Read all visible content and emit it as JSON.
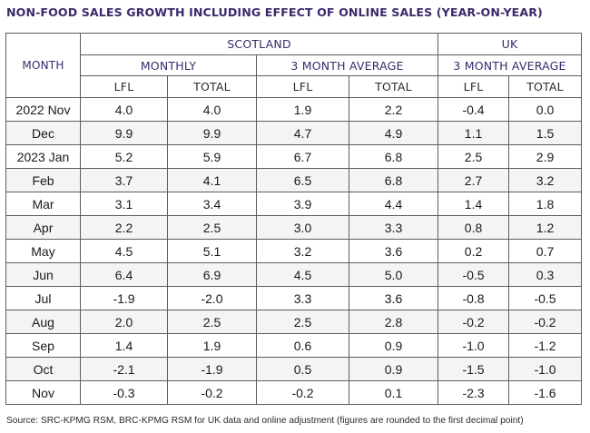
{
  "title": "NON-FOOD SALES GROWTH INCLUDING EFFECT OF ONLINE SALES (YEAR-ON-YEAR)",
  "headers": {
    "month": "MONTH",
    "scotland": "SCOTLAND",
    "uk": "UK",
    "monthly": "MONTHLY",
    "scot_3ma": "3 MONTH AVERAGE",
    "uk_3ma": "3 MONTH AVERAGE",
    "cols": [
      "LFL",
      "TOTAL",
      "LFL",
      "TOTAL",
      "LFL",
      "TOTAL"
    ]
  },
  "rows": [
    {
      "month": "2022 Nov",
      "values": [
        "4.0",
        "4.0",
        "1.9",
        "2.2",
        "-0.4",
        "0.0"
      ]
    },
    {
      "month": "Dec",
      "values": [
        "9.9",
        "9.9",
        "4.7",
        "4.9",
        "1.1",
        "1.5"
      ]
    },
    {
      "month": "2023 Jan",
      "values": [
        "5.2",
        "5.9",
        "6.7",
        "6.8",
        "2.5",
        "2.9"
      ]
    },
    {
      "month": "Feb",
      "values": [
        "3.7",
        "4.1",
        "6.5",
        "6.8",
        "2.7",
        "3.2"
      ]
    },
    {
      "month": "Mar",
      "values": [
        "3.1",
        "3.4",
        "3.9",
        "4.4",
        "1.4",
        "1.8"
      ]
    },
    {
      "month": "Apr",
      "values": [
        "2.2",
        "2.5",
        "3.0",
        "3.3",
        "0.8",
        "1.2"
      ]
    },
    {
      "month": "May",
      "values": [
        "4.5",
        "5.1",
        "3.2",
        "3.6",
        "0.2",
        "0.7"
      ]
    },
    {
      "month": "Jun",
      "values": [
        "6.4",
        "6.9",
        "4.5",
        "5.0",
        "-0.5",
        "0.3"
      ]
    },
    {
      "month": "Jul",
      "values": [
        "-1.9",
        "-2.0",
        "3.3",
        "3.6",
        "-0.8",
        "-0.5"
      ]
    },
    {
      "month": "Aug",
      "values": [
        "2.0",
        "2.5",
        "2.5",
        "2.8",
        "-0.2",
        "-0.2"
      ]
    },
    {
      "month": "Sep",
      "values": [
        "1.4",
        "1.9",
        "0.6",
        "0.9",
        "-1.0",
        "-1.2"
      ]
    },
    {
      "month": "Oct",
      "values": [
        "-2.1",
        "-1.9",
        "0.5",
        "0.9",
        "-1.5",
        "-1.0"
      ]
    },
    {
      "month": "Nov",
      "values": [
        "-0.3",
        "-0.2",
        "-0.2",
        "0.1",
        "-2.3",
        "-1.6"
      ]
    }
  ],
  "source": "Source: SRC-KPMG RSM, BRC-KPMG RSM for UK data and online adjustment (figures are rounded to the first decimal point)",
  "colors": {
    "header_text": "#3b2a6b",
    "border": "#5d5d5d",
    "row_alt": "#f4f3f6"
  }
}
